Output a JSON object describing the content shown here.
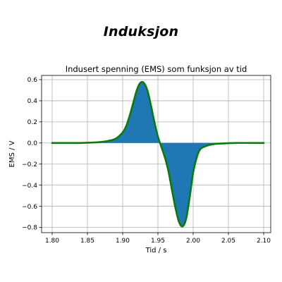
{
  "page": {
    "title": "Induksjon"
  },
  "chart_data": {
    "type": "line",
    "title": "Indusert spenning (EMS) som funksjon av tid",
    "xlabel": "Tid / s",
    "ylabel": "EMS / V",
    "xlim": [
      1.785,
      2.11
    ],
    "ylim": [
      -0.85,
      0.64
    ],
    "xticks": [
      1.8,
      1.85,
      1.9,
      1.95,
      2.0,
      2.05,
      2.1
    ],
    "xtick_labels": [
      "1.80",
      "1.85",
      "1.90",
      "1.95",
      "2.00",
      "2.05",
      "2.10"
    ],
    "yticks": [
      0.6,
      0.4,
      0.2,
      0.0,
      -0.2,
      -0.4,
      -0.6,
      -0.8
    ],
    "ytick_labels": [
      "0.6",
      "0.4",
      "0.2",
      "0.0",
      "−0.2",
      "−0.4",
      "−0.6",
      "−0.8"
    ],
    "grid": true,
    "fill_under_curve": true,
    "line_color": "#0a7a0a",
    "fill_color": "#1f77b4",
    "series": [
      {
        "name": "",
        "x": [
          1.8,
          1.82,
          1.84,
          1.86,
          1.87,
          1.88,
          1.89,
          1.9,
          1.905,
          1.91,
          1.915,
          1.92,
          1.925,
          1.93,
          1.935,
          1.94,
          1.945,
          1.95,
          1.955,
          1.96,
          1.965,
          1.97,
          1.975,
          1.98,
          1.985,
          1.99,
          1.995,
          2.0,
          2.005,
          2.01,
          2.02,
          2.03,
          2.04,
          2.06,
          2.08,
          2.1
        ],
        "y": [
          0.0,
          0.0,
          0.0,
          0.005,
          0.01,
          0.02,
          0.04,
          0.1,
          0.16,
          0.26,
          0.38,
          0.5,
          0.57,
          0.57,
          0.5,
          0.36,
          0.2,
          0.06,
          -0.04,
          -0.14,
          -0.27,
          -0.45,
          -0.62,
          -0.75,
          -0.79,
          -0.72,
          -0.52,
          -0.28,
          -0.14,
          -0.06,
          -0.025,
          -0.01,
          -0.005,
          0.0,
          0.0,
          0.0
        ]
      }
    ]
  }
}
